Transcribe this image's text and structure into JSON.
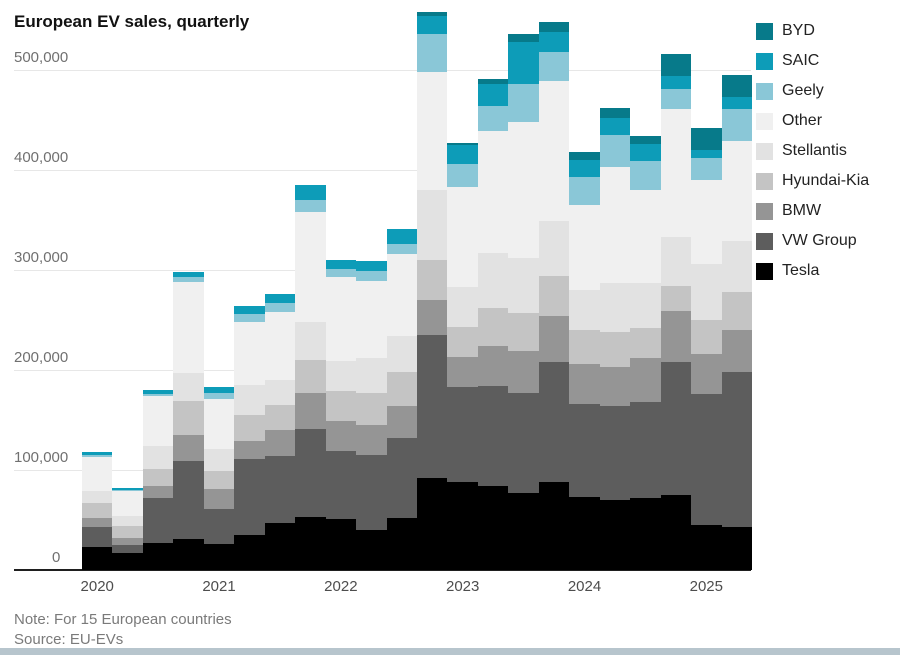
{
  "title": "European EV sales, quarterly",
  "note": "Note: For 15 European countries",
  "source": "Source: EU-EVs",
  "colors": {
    "background": "#ffffff",
    "gridline": "#e7e7e7",
    "axis_line": "#1f1f1f",
    "y_label_text": "#707070",
    "x_label_text": "#4d4d4d",
    "title_text": "#111111",
    "note_text": "#7a7a7a",
    "legend_text": "#222222",
    "bottom_strip": "#b7c5cd"
  },
  "chart_data": {
    "type": "bar",
    "stacked": true,
    "title": "European EV sales, quarterly",
    "xlabel": "",
    "ylabel": "",
    "ylim": [
      0,
      570000
    ],
    "grid": true,
    "legend_position": "right",
    "legend_order_top_to_bottom": [
      "BYD",
      "SAIC",
      "Geely",
      "Other",
      "Stellantis",
      "Hyundai-Kia",
      "BMW",
      "VW Group",
      "Tesla"
    ],
    "y_axis": {
      "ticks": [
        500000,
        400000,
        300000,
        200000,
        100000,
        0
      ],
      "tick_labels": [
        "500,000",
        "400,000",
        "300,000",
        "200,000",
        "100,000",
        "0"
      ]
    },
    "x_axis": {
      "year_labels": [
        "2020",
        "2021",
        "2022",
        "2023",
        "2024",
        "2025"
      ],
      "year_label_centered_on": "first quarter of each year"
    },
    "categories": [
      "2020 Q1",
      "2020 Q2",
      "2020 Q3",
      "2020 Q4",
      "2021 Q1",
      "2021 Q2",
      "2021 Q3",
      "2021 Q4",
      "2022 Q1",
      "2022 Q2",
      "2022 Q3",
      "2022 Q4",
      "2023 Q1",
      "2023 Q2",
      "2023 Q3",
      "2023 Q4",
      "2024 Q1",
      "2024 Q2",
      "2024 Q3",
      "2024 Q4",
      "2025 Q1",
      "2025 Q2"
    ],
    "series_bottom_to_top": [
      {
        "name": "Tesla",
        "color": "#000000",
        "values": [
          23000,
          17000,
          27000,
          31000,
          26000,
          35000,
          47000,
          53000,
          51000,
          40000,
          52000,
          92000,
          88000,
          84000,
          77000,
          88000,
          73000,
          70000,
          72000,
          75000,
          45000,
          43000
        ]
      },
      {
        "name": "VW Group",
        "color": "#5d5d5d",
        "values": [
          20000,
          8000,
          45000,
          78000,
          35000,
          76000,
          67000,
          88000,
          68000,
          75000,
          80000,
          143000,
          95000,
          100000,
          100000,
          120000,
          93000,
          94000,
          96000,
          133000,
          131000,
          155000
        ]
      },
      {
        "name": "BMW",
        "color": "#959595",
        "values": [
          9000,
          7000,
          12000,
          26000,
          20000,
          18000,
          26000,
          36000,
          30000,
          30000,
          32000,
          35000,
          30000,
          40000,
          42000,
          46000,
          40000,
          39000,
          44000,
          51000,
          40000,
          42000
        ]
      },
      {
        "name": "Hyundai-Kia",
        "color": "#c4c4c4",
        "values": [
          15000,
          12000,
          17000,
          34000,
          18000,
          26000,
          25000,
          33000,
          30000,
          32000,
          34000,
          40000,
          30000,
          38000,
          38000,
          40000,
          34000,
          35000,
          30000,
          25000,
          34000,
          38000
        ]
      },
      {
        "name": "Stellantis",
        "color": "#e2e2e2",
        "values": [
          12000,
          10000,
          23000,
          28000,
          22000,
          30000,
          25000,
          38000,
          30000,
          35000,
          36000,
          70000,
          40000,
          55000,
          55000,
          55000,
          40000,
          49000,
          45000,
          49000,
          56000,
          51000
        ]
      },
      {
        "name": "Other",
        "color": "#f0f0f0",
        "values": [
          34000,
          25000,
          50000,
          91000,
          50000,
          63000,
          68000,
          110000,
          84000,
          77000,
          82000,
          118000,
          100000,
          122000,
          136000,
          140000,
          85000,
          116000,
          93000,
          128000,
          84000,
          100000
        ]
      },
      {
        "name": "Geely",
        "color": "#8ac7d7",
        "values": [
          2000,
          1000,
          2000,
          5000,
          6000,
          8000,
          9000,
          12000,
          8000,
          10000,
          10000,
          38000,
          23000,
          25000,
          38000,
          29000,
          28000,
          32000,
          29000,
          20000,
          22000,
          32000
        ]
      },
      {
        "name": "SAIC",
        "color": "#0d9cb8",
        "values": [
          3000,
          2000,
          4000,
          5000,
          6000,
          8000,
          9000,
          15000,
          9000,
          10000,
          15000,
          18000,
          19000,
          22000,
          42000,
          20000,
          17000,
          17000,
          17000,
          13000,
          8000,
          12000
        ]
      },
      {
        "name": "BYD",
        "color": "#077a8a",
        "values": [
          0,
          0,
          0,
          0,
          0,
          0,
          0,
          0,
          0,
          0,
          0,
          4000,
          2000,
          5000,
          8000,
          10000,
          8000,
          10000,
          8000,
          22000,
          22000,
          22000
        ]
      }
    ]
  }
}
